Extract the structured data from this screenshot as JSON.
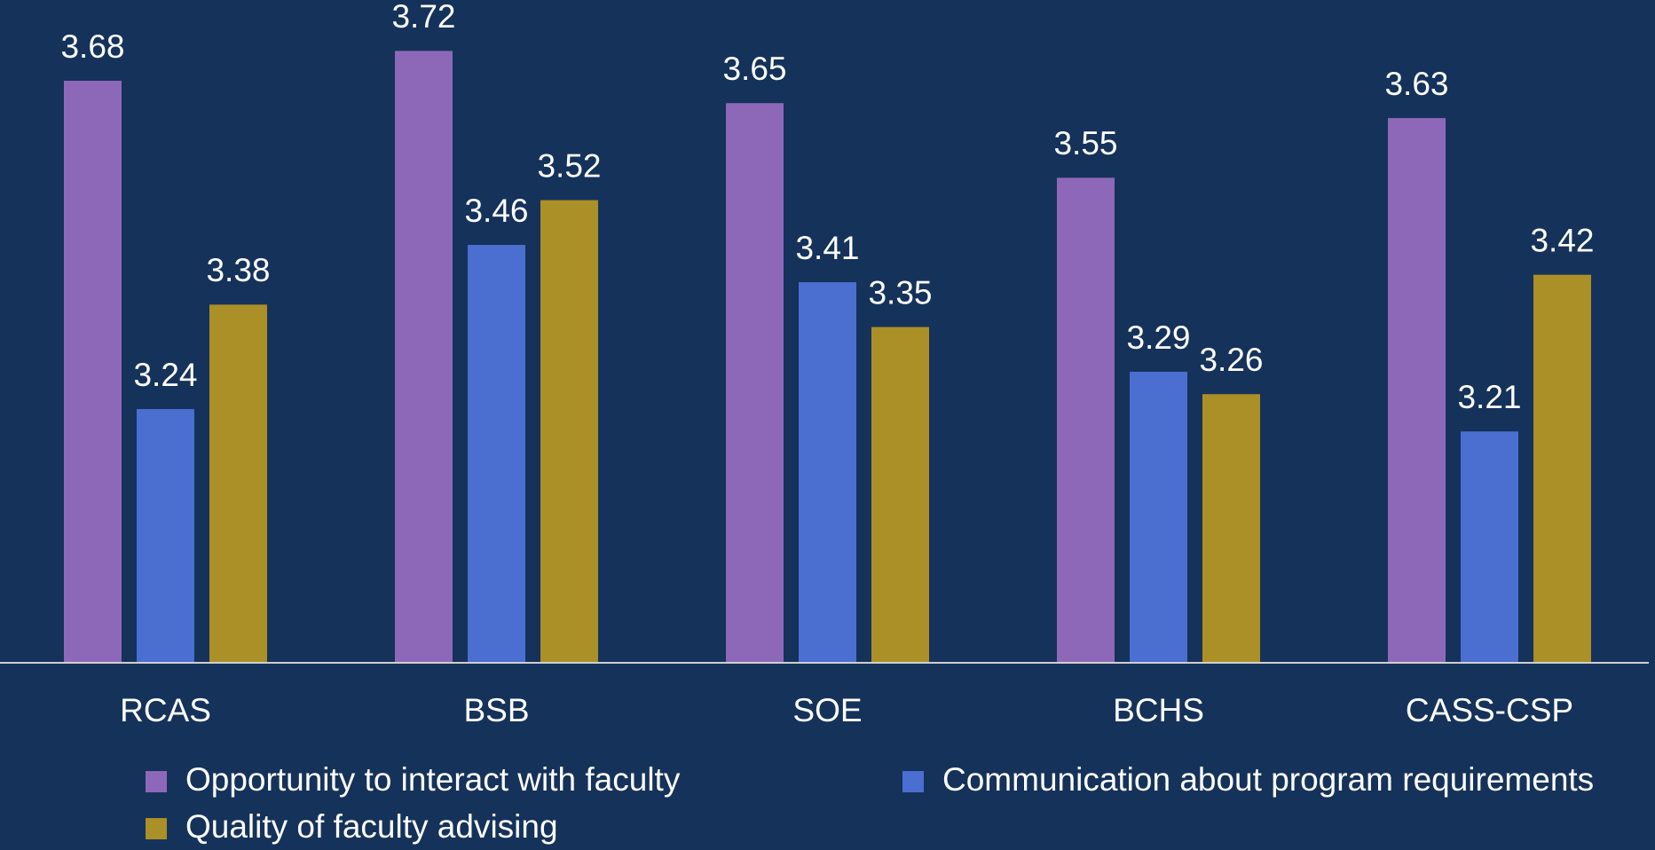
{
  "chart_data": {
    "type": "bar",
    "categories": [
      "RCAS",
      "BSB",
      "SOE",
      "BCHS",
      "CASS-CSP"
    ],
    "series": [
      {
        "name": "Opportunity to interact with faculty",
        "color": "#8e68b8",
        "values": [
          3.68,
          3.72,
          3.65,
          3.55,
          3.63
        ]
      },
      {
        "name": "Communication about program requirements",
        "color": "#4a6fd1",
        "values": [
          3.24,
          3.46,
          3.41,
          3.29,
          3.21
        ]
      },
      {
        "name": "Quality of faculty advising",
        "color": "#ab8f27",
        "values": [
          3.38,
          3.52,
          3.35,
          3.26,
          3.42
        ]
      }
    ],
    "ylim": [
      2.9,
      3.8
    ]
  }
}
